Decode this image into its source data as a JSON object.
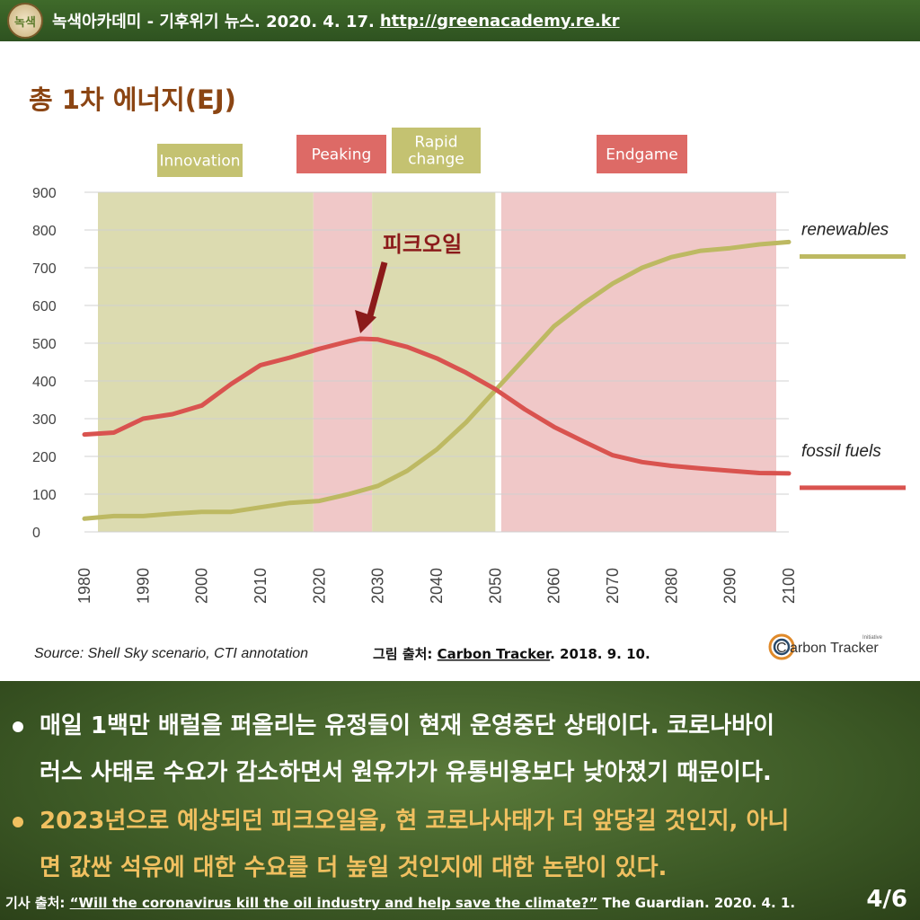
{
  "header": {
    "text": "녹색아카데미 - 기후위기 뉴스. 2020. 4. 17.",
    "url": "http://greenacademy.re.kr",
    "logo_text": "녹색"
  },
  "chart_data": {
    "type": "line",
    "title": "총 1차 에너지(EJ)",
    "ylim": [
      0,
      900
    ],
    "xlim": [
      1980,
      2100
    ],
    "yticks": [
      "0",
      "100",
      "200",
      "300",
      "400",
      "500",
      "600",
      "700",
      "800",
      "900"
    ],
    "xticks": [
      "1980",
      "1990",
      "2000",
      "2010",
      "2020",
      "2030",
      "2040",
      "2050",
      "2060",
      "2070",
      "2080",
      "2090",
      "2100"
    ],
    "series": [
      {
        "name": "renewables",
        "color": "#bdb962",
        "x": [
          1980,
          1985,
          1990,
          1995,
          2000,
          2005,
          2010,
          2015,
          2020,
          2025,
          2030,
          2035,
          2040,
          2045,
          2050,
          2055,
          2060,
          2065,
          2070,
          2075,
          2080,
          2085,
          2090,
          2095,
          2100
        ],
        "values": [
          35,
          42,
          42,
          48,
          53,
          53,
          65,
          77,
          82,
          100,
          122,
          162,
          218,
          290,
          375,
          460,
          545,
          605,
          658,
          700,
          728,
          745,
          752,
          762,
          768
        ]
      },
      {
        "name": "fossil fuels",
        "color": "#d9534f",
        "x": [
          1980,
          1985,
          1990,
          1995,
          2000,
          2005,
          2010,
          2015,
          2020,
          2025,
          2027,
          2030,
          2035,
          2040,
          2045,
          2050,
          2055,
          2060,
          2065,
          2070,
          2075,
          2080,
          2085,
          2090,
          2095,
          2100
        ],
        "values": [
          258,
          263,
          300,
          312,
          335,
          392,
          442,
          462,
          485,
          505,
          512,
          510,
          490,
          460,
          422,
          378,
          325,
          278,
          240,
          203,
          185,
          175,
          168,
          162,
          156,
          155
        ]
      }
    ],
    "phases": [
      {
        "label": "Innovation",
        "start": 1980,
        "end": 2019,
        "color": "#dcdbb0",
        "label_bg": "#c4c271"
      },
      {
        "label": "Peaking",
        "start": 2019,
        "end": 2029,
        "color": "#f0c8c8",
        "label_bg": "#dd6a66"
      },
      {
        "label": "Rapid change",
        "start": 2029,
        "end": 2050,
        "color": "#dcdbb0",
        "label_bg": "#c4c271"
      },
      {
        "label": "Endgame",
        "start": 2051,
        "end": 2100,
        "color": "#f0c8c8",
        "label_bg": "#dd6a66"
      }
    ],
    "annotation": {
      "text": "피크오일",
      "x": 2027,
      "y": 512
    },
    "legend_placement": "right",
    "grid": true
  },
  "source_note": "Source: Shell Sky scenario, CTI annotation",
  "figure_credit": {
    "prefix": "그림 출처: ",
    "link": "Carbon Tracker",
    "date": ". 2018. 9. 10."
  },
  "brand": {
    "name": "arbon Tracker",
    "initial": "C",
    "tag": "Initiative"
  },
  "bullets": [
    {
      "line1": "매일 1백만 배럴을 퍼올리는 유정들이 현재 운영중단 상태이다. 코로나바이",
      "line2": "러스 사태로 수요가 감소하면서 원유가가 유통비용보다 낮아졌기 때문이다."
    },
    {
      "line1": "2023년으로 예상되던 피크오일을, 현 코로나사태가 더 앞당길 것인지, 아니",
      "line2": "면 값싼 석유에 대한 수요를 더 높일 것인지에 대한 논란이 있다."
    }
  ],
  "footer": {
    "prefix": "기사 출처: ",
    "link": "“Will the coronavirus kill the oil industry and help save the climate?”",
    "suffix": " The Guardian. 2020. 4. 1."
  },
  "page": "4/6"
}
